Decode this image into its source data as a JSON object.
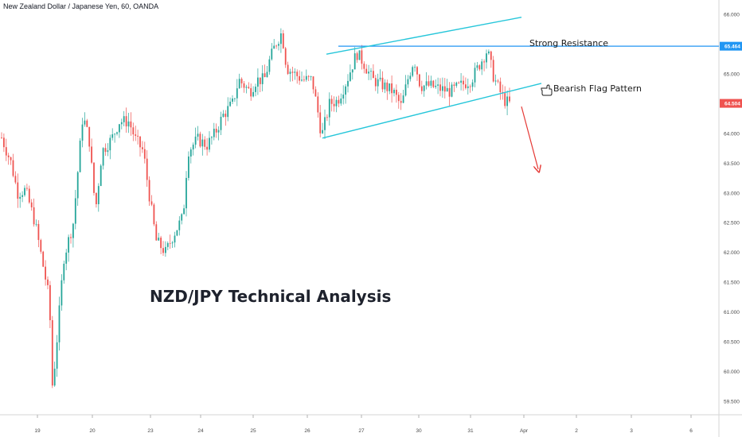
{
  "title": "New Zealand Dollar / Japanese Yen, 60, OANDA",
  "headline": "NZD/JPY Technical Analysis",
  "colors": {
    "up": "#26a69a",
    "down": "#ef5350",
    "channel": "#26c6da",
    "resistance": "#2196f3",
    "arrow": "#e53935",
    "price_badge": "#ef5350",
    "resistance_badge": "#2196f3"
  },
  "annotations": {
    "strong_resistance": "Strong Resistance",
    "bearish_flag": "Bearish Flag Pattern",
    "hand_icon": "pointing-hand-icon"
  },
  "badges": {
    "resistance_price": "65.464",
    "last_price": "64.504"
  },
  "chart_data": {
    "type": "candlestick",
    "symbol": "NZD/JPY",
    "timeframe": "60",
    "ylim": [
      59.3,
      66.2
    ],
    "y_ticks": [
      "66.000",
      "65.500",
      "65.000",
      "64.500",
      "64.000",
      "63.500",
      "63.000",
      "62.500",
      "62.000",
      "61.500",
      "61.000",
      "60.500",
      "60.000",
      "59.500"
    ],
    "x_ticks": [
      "19",
      "20",
      "23",
      "24",
      "25",
      "26",
      "27",
      "30",
      "31",
      "Apr",
      "2",
      "3",
      "6"
    ],
    "resistance_level": 65.464,
    "last_price": 64.504,
    "channel": {
      "upper": [
        [
          410,
          65.33
        ],
        [
          655,
          65.95
        ]
      ],
      "lower": [
        [
          405,
          63.92
        ],
        [
          680,
          64.84
        ]
      ]
    },
    "anchors": [
      [
        0,
        64.0
      ],
      [
        14,
        63.5
      ],
      [
        22,
        63.0
      ],
      [
        32,
        63.05
      ],
      [
        44,
        62.5
      ],
      [
        58,
        61.5
      ],
      [
        62,
        61.2
      ],
      [
        66,
        59.7
      ],
      [
        72,
        60.6
      ],
      [
        80,
        61.9
      ],
      [
        92,
        62.5
      ],
      [
        100,
        63.7
      ],
      [
        104,
        64.3
      ],
      [
        112,
        63.9
      ],
      [
        120,
        62.7
      ],
      [
        128,
        63.7
      ],
      [
        140,
        63.9
      ],
      [
        150,
        64.2
      ],
      [
        162,
        64.2
      ],
      [
        170,
        63.9
      ],
      [
        180,
        63.7
      ],
      [
        186,
        63.1
      ],
      [
        196,
        62.2
      ],
      [
        208,
        62.0
      ],
      [
        218,
        62.3
      ],
      [
        230,
        62.6
      ],
      [
        236,
        63.7
      ],
      [
        248,
        63.9
      ],
      [
        260,
        63.8
      ],
      [
        270,
        64.0
      ],
      [
        280,
        64.3
      ],
      [
        292,
        64.5
      ],
      [
        300,
        64.9
      ],
      [
        314,
        64.7
      ],
      [
        322,
        64.9
      ],
      [
        332,
        64.9
      ],
      [
        338,
        65.2
      ],
      [
        346,
        65.5
      ],
      [
        354,
        65.7
      ],
      [
        360,
        65.1
      ],
      [
        370,
        65.0
      ],
      [
        380,
        64.9
      ],
      [
        392,
        64.9
      ],
      [
        400,
        64.3
      ],
      [
        404,
        63.95
      ],
      [
        414,
        64.5
      ],
      [
        424,
        64.55
      ],
      [
        436,
        64.9
      ],
      [
        448,
        65.35
      ],
      [
        456,
        65.2
      ],
      [
        468,
        64.9
      ],
      [
        482,
        64.8
      ],
      [
        494,
        64.7
      ],
      [
        504,
        64.45
      ],
      [
        512,
        64.9
      ],
      [
        520,
        65.25
      ],
      [
        528,
        64.8
      ],
      [
        540,
        64.8
      ],
      [
        552,
        64.75
      ],
      [
        566,
        64.7
      ],
      [
        578,
        64.8
      ],
      [
        592,
        64.9
      ],
      [
        604,
        65.2
      ],
      [
        612,
        65.4
      ],
      [
        620,
        64.95
      ],
      [
        628,
        64.7
      ],
      [
        634,
        64.55
      ],
      [
        640,
        64.5
      ]
    ],
    "projection_arrow": {
      "from": [
        655,
        64.45
      ],
      "to": [
        676,
        63.4
      ]
    },
    "grid": false,
    "legend": "none"
  }
}
